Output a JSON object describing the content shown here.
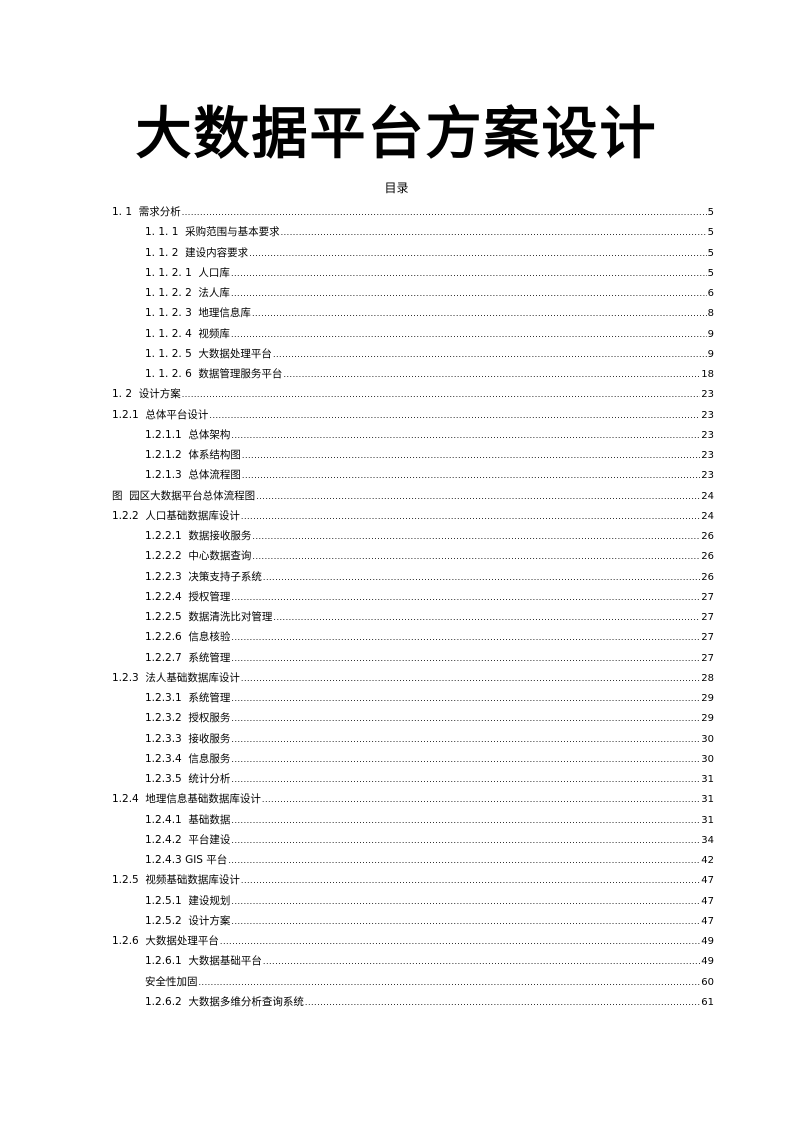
{
  "title": "大数据平台方案设计",
  "toc_heading": "目录",
  "toc": [
    {
      "text": "1. 1  需求分析",
      "page": "5",
      "level": 1
    },
    {
      "text": "1. 1. 1  采购范围与基本要求",
      "page": "5",
      "level": 2
    },
    {
      "text": "1. 1. 2  建设内容要求",
      "page": "5",
      "level": 2
    },
    {
      "text": "1. 1. 2. 1  人口库",
      "page": "5",
      "level": 2
    },
    {
      "text": "1. 1. 2. 2  法人库",
      "page": "6",
      "level": 2
    },
    {
      "text": "1. 1. 2. 3  地理信息库",
      "page": "8",
      "level": 2
    },
    {
      "text": "1. 1. 2. 4  视频库",
      "page": "9",
      "level": 2
    },
    {
      "text": "1. 1. 2. 5  大数据处理平台",
      "page": "9",
      "level": 2
    },
    {
      "text": "1. 1. 2. 6  数据管理服务平台",
      "page": "18",
      "level": 2
    },
    {
      "text": "1. 2  设计方案",
      "page": "23",
      "level": 1
    },
    {
      "text": "1.2.1  总体平台设计",
      "page": "23",
      "level": 1
    },
    {
      "text": "1.2.1.1  总体架构",
      "page": "23",
      "level": 2
    },
    {
      "text": "1.2.1.2  体系结构图",
      "page": "23",
      "level": 2
    },
    {
      "text": "1.2.1.3  总体流程图",
      "page": "23",
      "level": 2
    },
    {
      "text": "图  园区大数据平台总体流程图",
      "page": "24",
      "level": 1
    },
    {
      "text": "1.2.2  人口基础数据库设计",
      "page": "24",
      "level": 1
    },
    {
      "text": "1.2.2.1  数据接收服务",
      "page": "26",
      "level": 2
    },
    {
      "text": "1.2.2.2  中心数据查询",
      "page": "26",
      "level": 2
    },
    {
      "text": "1.2.2.3  决策支持子系统",
      "page": "26",
      "level": 2
    },
    {
      "text": "1.2.2.4  授权管理",
      "page": "27",
      "level": 2
    },
    {
      "text": "1.2.2.5  数据清洗比对管理",
      "page": "27",
      "level": 2
    },
    {
      "text": "1.2.2.6  信息核验",
      "page": "27",
      "level": 2
    },
    {
      "text": "1.2.2.7  系统管理",
      "page": "27",
      "level": 2
    },
    {
      "text": "1.2.3  法人基础数据库设计",
      "page": "28",
      "level": 1
    },
    {
      "text": "1.2.3.1  系统管理",
      "page": "29",
      "level": 2
    },
    {
      "text": "1.2.3.2  授权服务",
      "page": "29",
      "level": 2
    },
    {
      "text": "1.2.3.3  接收服务",
      "page": "30",
      "level": 2
    },
    {
      "text": "1.2.3.4  信息服务",
      "page": "30",
      "level": 2
    },
    {
      "text": "1.2.3.5  统计分析",
      "page": "31",
      "level": 2
    },
    {
      "text": "1.2.4  地理信息基础数据库设计",
      "page": "31",
      "level": 1
    },
    {
      "text": "1.2.4.1  基础数据",
      "page": "31",
      "level": 2
    },
    {
      "text": "1.2.4.2  平台建设",
      "page": "34",
      "level": 2
    },
    {
      "text": "1.2.4.3 GIS 平台",
      "page": "42",
      "level": 2
    },
    {
      "text": "1.2.5  视频基础数据库设计",
      "page": "47",
      "level": 1
    },
    {
      "text": "1.2.5.1  建设规划",
      "page": "47",
      "level": 2
    },
    {
      "text": "1.2.5.2  设计方案",
      "page": "47",
      "level": 2
    },
    {
      "text": "1.2.6  大数据处理平台",
      "page": "49",
      "level": 1
    },
    {
      "text": "1.2.6.1  大数据基础平台",
      "page": "49",
      "level": 2
    },
    {
      "text": "安全性加固",
      "page": "60",
      "level": 2
    },
    {
      "text": "1.2.6.2  大数据多维分析查询系统",
      "page": "61",
      "level": 2
    }
  ]
}
